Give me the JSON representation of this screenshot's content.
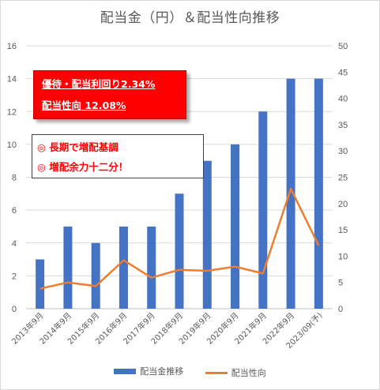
{
  "chart_data": {
    "type": "bar+line",
    "title": "配当金（円）＆配当性向推移",
    "categories": [
      "2013年9月",
      "2014年9月",
      "2015年9月",
      "2016年9月",
      "2017年9月",
      "2018年9月",
      "2019年9月",
      "2020年9月",
      "2021年9月",
      "2022年9月",
      "2023/09(予)"
    ],
    "series": [
      {
        "name": "配当金推移",
        "type": "bar",
        "axis": "left",
        "color": "#4472c4",
        "values": [
          3,
          5,
          4,
          5,
          5,
          7,
          9,
          10,
          12,
          14,
          14
        ]
      },
      {
        "name": "配当性向",
        "type": "line",
        "axis": "right",
        "color": "#ed7d31",
        "values": [
          3.8,
          5.0,
          4.3,
          9.2,
          5.9,
          7.4,
          7.2,
          8.0,
          6.7,
          22.8,
          12.0
        ]
      }
    ],
    "y_left": {
      "min": 0,
      "max": 16,
      "step": 2,
      "ticks": [
        "0",
        "2",
        "4",
        "6",
        "8",
        "10",
        "12",
        "14",
        "16"
      ]
    },
    "y_right": {
      "min": 0,
      "max": 50,
      "step": 5,
      "ticks": [
        "0",
        "5",
        "10",
        "15",
        "20",
        "25",
        "30",
        "35",
        "40",
        "45",
        "50"
      ]
    },
    "grid": true,
    "legend": "bottom"
  },
  "notes": {
    "red": [
      "優待・配当利回り2.34%",
      "配当性向 12.08%"
    ],
    "white": [
      "◎ 長期で増配基調",
      "◎ 増配余力十二分！"
    ]
  }
}
